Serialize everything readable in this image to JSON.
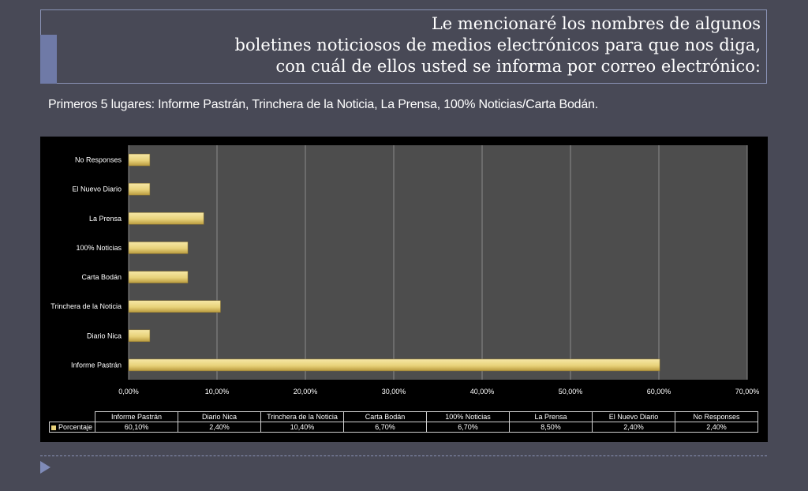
{
  "slide": {
    "title_lines": [
      "Le mencionaré los nombres de algunos",
      "boletines noticiosos de medios electrónicos para que nos diga,",
      "con cuál de ellos usted se informa por correo electrónico:"
    ],
    "subtitle": "Primeros 5 lugares: Informe Pastrán, Trinchera de la Noticia, La Prensa,  100% Noticias/Carta Bodán."
  },
  "colors": {
    "background": "#484956",
    "bar": "#e8d27a",
    "plot_area": "#4d4d4d",
    "accent": "#6f7aa7"
  },
  "chart_data": {
    "type": "bar",
    "orientation": "horizontal",
    "categories": [
      "Informe Pastrán",
      "Diario Nica",
      "Trinchera de la Noticia",
      "Carta Bodán",
      "100% Noticias",
      "La Prensa",
      "El Nuevo Diario",
      "No Responses"
    ],
    "series": [
      {
        "name": "Porcentaje",
        "values": [
          60.1,
          2.4,
          10.4,
          6.7,
          6.7,
          8.5,
          2.4,
          2.4
        ]
      }
    ],
    "value_labels": [
      "60,10%",
      "2,40%",
      "10,40%",
      "6,70%",
      "6,70%",
      "8,50%",
      "2,40%",
      "2,40%"
    ],
    "xlim": [
      0,
      70
    ],
    "xticks": [
      0,
      10,
      20,
      30,
      40,
      50,
      60,
      70
    ],
    "xtick_labels": [
      "0,00%",
      "10,00%",
      "20,00%",
      "30,00%",
      "40,00%",
      "50,00%",
      "60,00%",
      "70,00%"
    ],
    "grid": true,
    "data_table": true
  }
}
